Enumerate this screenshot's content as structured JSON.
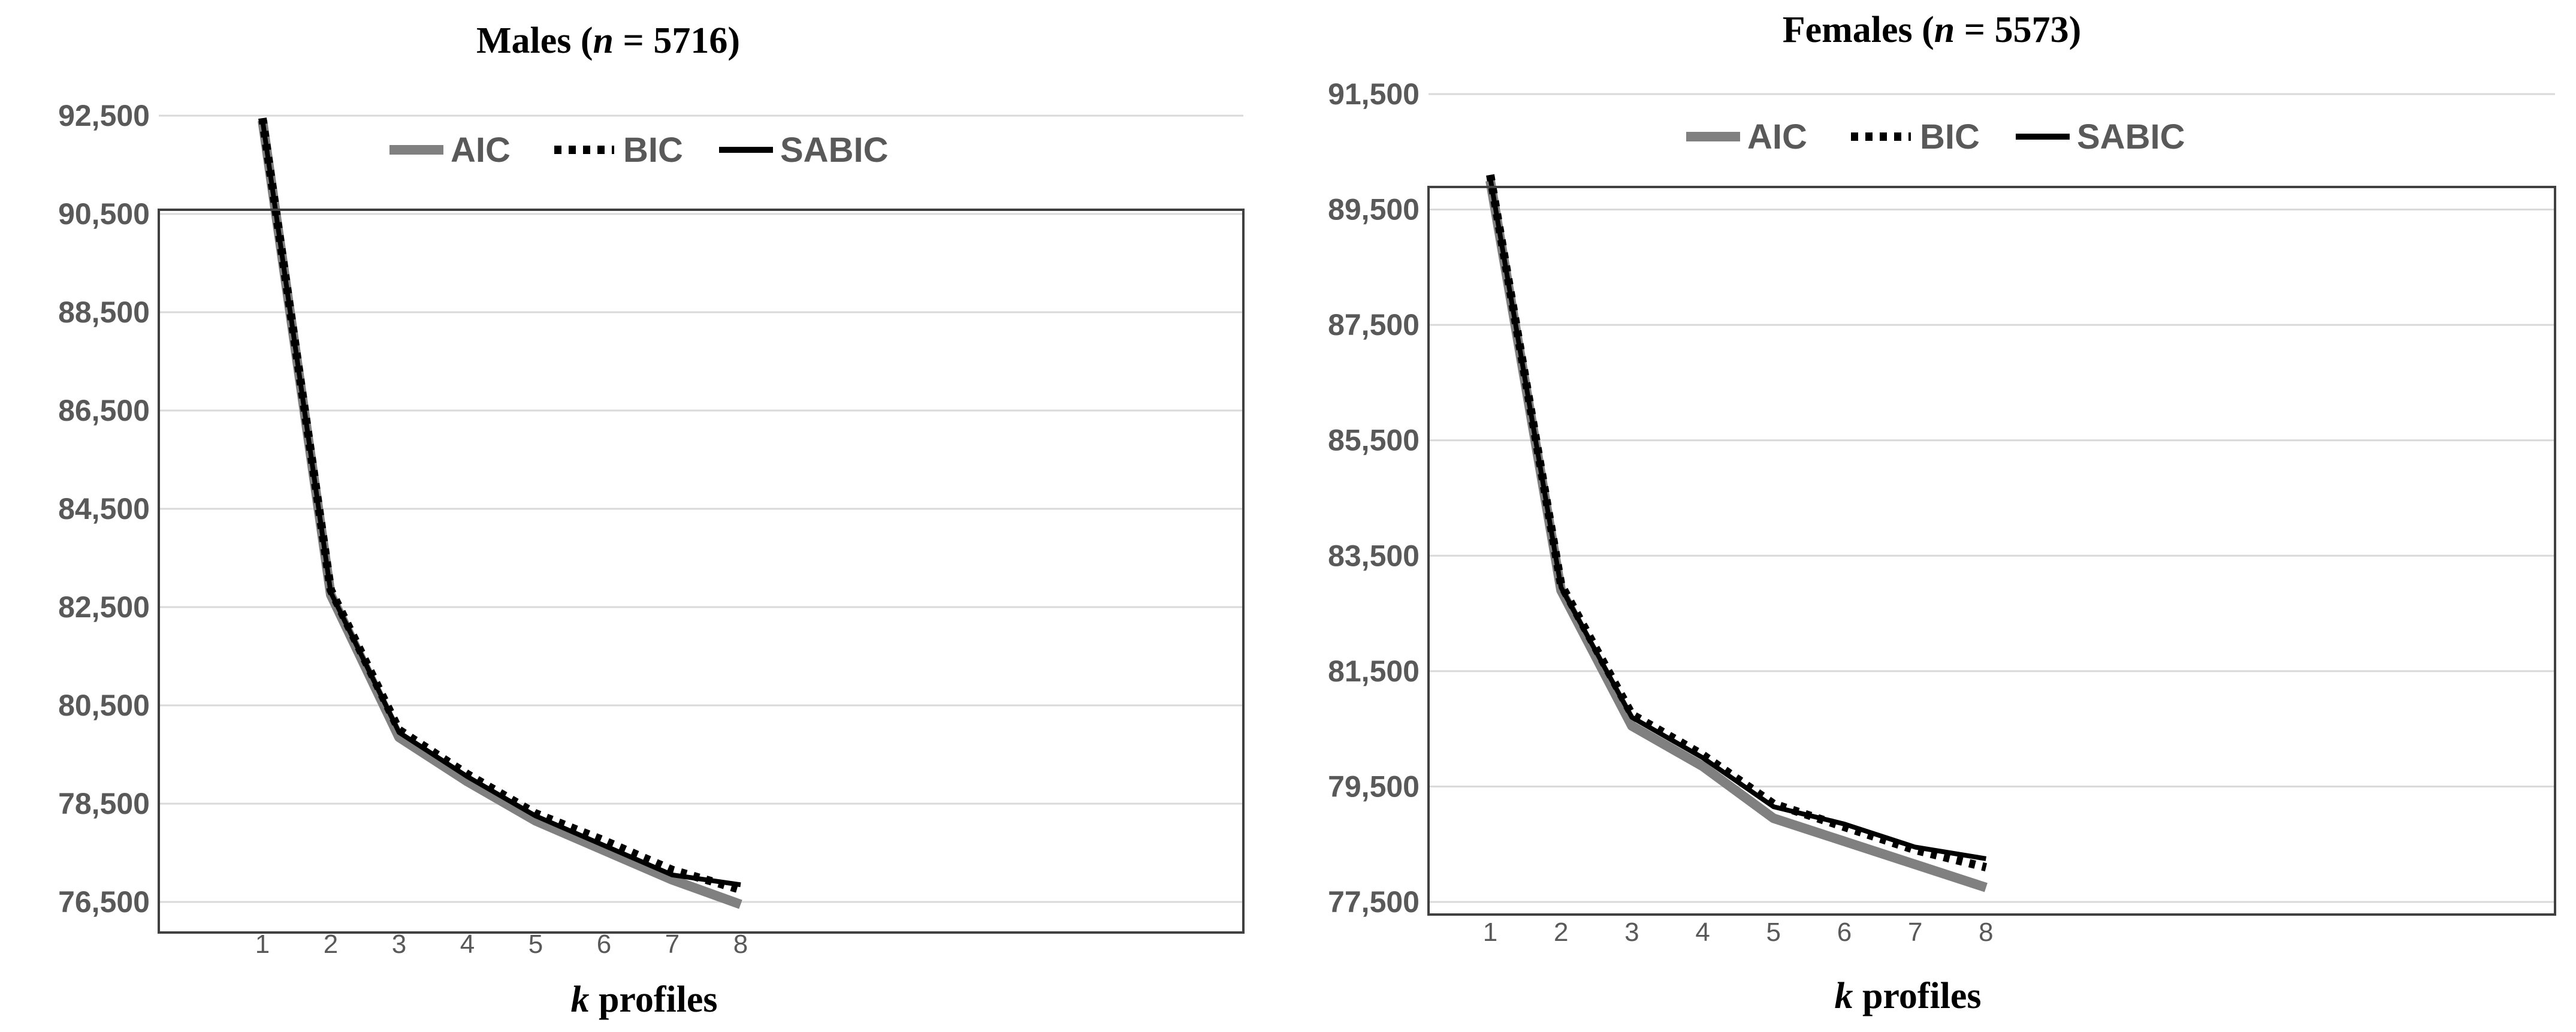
{
  "chart_data": [
    {
      "type": "line",
      "title_prefix": "Males (",
      "title_n": "n",
      "title_suffix": " = 5716)",
      "xlabel_k": "k",
      "xlabel_rest": " profiles",
      "ylabel": "",
      "x": [
        1,
        2,
        3,
        4,
        5,
        6,
        7,
        8
      ],
      "xticks": [
        "1",
        "2",
        "3",
        "4",
        "5",
        "6",
        "7",
        "8"
      ],
      "ylim": [
        76500,
        93100
      ],
      "yticks": [
        76500,
        78500,
        80500,
        82500,
        84500,
        86500,
        88500,
        90500,
        92500
      ],
      "ytick_labels": [
        "76,500",
        "78,500",
        "80,500",
        "82,500",
        "84,500",
        "86,500",
        "88,500",
        "90,500",
        "92,500"
      ],
      "grid": true,
      "legend_position": "top-center",
      "series": [
        {
          "name": "AIC",
          "values": [
            92400,
            82750,
            79850,
            78950,
            78150,
            77550,
            76950,
            76450
          ],
          "color": "#808080",
          "style": "solid-thick"
        },
        {
          "name": "BIC",
          "values": [
            92450,
            82850,
            80000,
            79100,
            78300,
            77750,
            77150,
            76750
          ],
          "color": "#000000",
          "style": "dotted"
        },
        {
          "name": "SABIC",
          "values": [
            92420,
            82800,
            79950,
            79050,
            78250,
            77650,
            77050,
            76850
          ],
          "color": "#000000",
          "style": "solid"
        }
      ]
    },
    {
      "type": "line",
      "title_prefix": "Females (",
      "title_n": "n",
      "title_suffix": " = 5573)",
      "xlabel_k": "k",
      "xlabel_rest": " profiles",
      "ylabel": "",
      "x": [
        1,
        2,
        3,
        4,
        5,
        6,
        7,
        8
      ],
      "xticks": [
        "1",
        "2",
        "3",
        "4",
        "5",
        "6",
        "7",
        "8"
      ],
      "ylim": [
        77500,
        91500
      ],
      "yticks": [
        77500,
        79500,
        81500,
        83500,
        85500,
        87500,
        89500,
        91500
      ],
      "ytick_labels": [
        "77,500",
        "79,500",
        "81,500",
        "83,500",
        "85,500",
        "87,500",
        "89,500",
        "91,500"
      ],
      "grid": true,
      "legend_position": "top-center",
      "series": [
        {
          "name": "AIC",
          "values": [
            90000,
            82900,
            80550,
            79850,
            78950,
            78550,
            78150,
            77750
          ],
          "color": "#808080",
          "style": "solid-thick"
        },
        {
          "name": "BIC",
          "values": [
            90100,
            83000,
            80750,
            80050,
            79200,
            78800,
            78400,
            78100
          ],
          "color": "#000000",
          "style": "dotted"
        },
        {
          "name": "SABIC",
          "values": [
            90050,
            82950,
            80700,
            80000,
            79150,
            78850,
            78450,
            78250
          ],
          "color": "#000000",
          "style": "solid"
        }
      ]
    }
  ]
}
